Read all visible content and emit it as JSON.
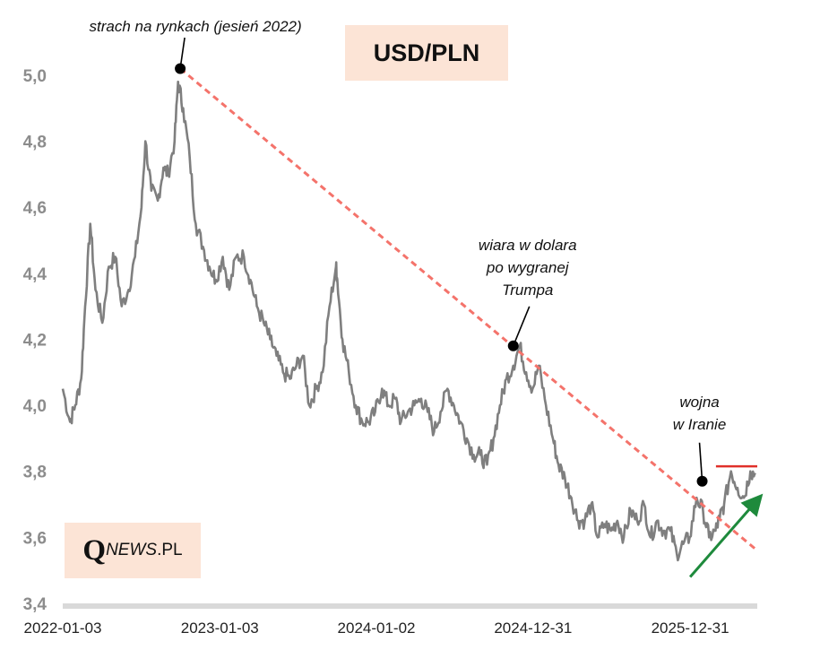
{
  "title": "USD/PLN",
  "logo": {
    "q": "Q",
    "news": "NEWS",
    "pl": ".PL"
  },
  "colors": {
    "series": "#7f7f7f",
    "resistance_trend": "#f4736b",
    "support_trend": "#1e8a3c",
    "horizontal_level": "#e0302a",
    "axis": "#d9d9d9",
    "box_fill": "#fce4d6"
  },
  "chart_data": {
    "type": "line",
    "title": "USD/PLN",
    "xlabel": "",
    "ylabel": "",
    "ylim": [
      3.4,
      5.1
    ],
    "xlim": [
      "2022-01-03",
      "2026-06-05"
    ],
    "grid": false,
    "y_ticks": [
      "3,4",
      "3,6",
      "3,8",
      "4,0",
      "4,2",
      "4,4",
      "4,6",
      "4,8",
      "5,0"
    ],
    "x_ticks": [
      "2022-01-03",
      "2023-01-03",
      "2024-01-02",
      "2024-12-31",
      "2025-12-31"
    ],
    "series": [
      {
        "x": [
          "2022-01-03",
          "2022-01-20",
          "2022-02-01",
          "2022-02-15",
          "2022-02-24",
          "2022-03-08",
          "2022-03-20",
          "2022-04-05",
          "2022-04-20",
          "2022-05-05",
          "2022-05-20",
          "2022-06-05",
          "2022-06-20",
          "2022-07-05",
          "2022-07-14",
          "2022-07-28",
          "2022-08-12",
          "2022-08-25",
          "2022-09-05",
          "2022-09-20",
          "2022-09-28",
          "2022-10-10",
          "2022-10-25",
          "2022-11-08",
          "2022-11-25",
          "2022-12-10",
          "2022-12-25",
          "2023-01-10",
          "2023-01-25",
          "2023-02-10",
          "2023-02-28",
          "2023-03-15",
          "2023-03-30",
          "2023-04-15",
          "2023-04-30",
          "2023-05-15",
          "2023-05-30",
          "2023-06-15",
          "2023-06-30",
          "2023-07-15",
          "2023-07-30",
          "2023-08-15",
          "2023-08-30",
          "2023-09-15",
          "2023-09-30",
          "2023-10-03",
          "2023-10-15",
          "2023-10-30",
          "2023-11-15",
          "2023-11-30",
          "2023-12-15",
          "2023-12-30",
          "2024-01-15",
          "2024-01-30",
          "2024-02-15",
          "2024-02-28",
          "2024-03-15",
          "2024-03-30",
          "2024-04-15",
          "2024-04-30",
          "2024-05-15",
          "2024-05-30",
          "2024-06-15",
          "2024-06-30",
          "2024-07-15",
          "2024-07-30",
          "2024-08-15",
          "2024-08-30",
          "2024-09-15",
          "2024-09-30",
          "2024-10-15",
          "2024-10-30",
          "2024-11-15",
          "2024-11-30",
          "2024-12-15",
          "2024-12-30",
          "2025-01-13",
          "2025-01-30",
          "2025-02-15",
          "2025-02-28",
          "2025-03-15",
          "2025-03-30",
          "2025-04-15",
          "2025-04-30",
          "2025-05-15",
          "2025-05-30",
          "2025-06-15",
          "2025-06-30",
          "2025-07-15",
          "2025-07-30",
          "2025-08-15",
          "2025-08-30",
          "2025-09-15",
          "2025-09-30",
          "2025-10-15",
          "2025-10-30",
          "2025-11-15",
          "2025-11-30",
          "2025-12-15",
          "2025-12-30",
          "2026-01-15",
          "2026-01-30",
          "2026-02-13",
          "2026-02-28",
          "2026-03-10",
          "2026-03-20",
          "2026-04-05",
          "2026-04-20",
          "2026-05-05",
          "2026-05-20",
          "2026-06-01"
        ],
        "y": [
          4.05,
          3.95,
          4.0,
          4.08,
          4.3,
          4.55,
          4.35,
          4.25,
          4.42,
          4.45,
          4.3,
          4.35,
          4.45,
          4.6,
          4.8,
          4.65,
          4.62,
          4.72,
          4.7,
          4.8,
          4.98,
          4.9,
          4.75,
          4.55,
          4.48,
          4.42,
          4.38,
          4.45,
          4.35,
          4.45,
          4.45,
          4.38,
          4.3,
          4.25,
          4.2,
          4.15,
          4.1,
          4.08,
          4.12,
          4.15,
          4.0,
          4.05,
          4.1,
          4.3,
          4.42,
          4.38,
          4.2,
          4.1,
          4.0,
          3.95,
          3.95,
          3.98,
          4.05,
          4.0,
          4.02,
          3.95,
          3.98,
          4.0,
          4.02,
          3.98,
          3.92,
          3.98,
          4.05,
          4.0,
          3.95,
          3.9,
          3.85,
          3.85,
          3.82,
          3.9,
          4.0,
          4.08,
          4.12,
          4.18,
          4.1,
          4.05,
          4.12,
          4.0,
          3.9,
          3.82,
          3.78,
          3.72,
          3.65,
          3.65,
          3.7,
          3.6,
          3.64,
          3.62,
          3.65,
          3.6,
          3.68,
          3.65,
          3.7,
          3.6,
          3.65,
          3.62,
          3.62,
          3.55,
          3.58,
          3.6,
          3.72,
          3.68,
          3.6,
          3.62,
          3.66,
          3.7,
          3.8,
          3.75,
          3.72,
          3.8,
          3.79
        ]
      }
    ],
    "trendlines": [
      {
        "name": "resistance",
        "style": "dashed",
        "from": [
          "2022-10-03",
          5.02
        ],
        "to": [
          "2026-06-05",
          3.56
        ]
      },
      {
        "name": "support",
        "style": "solid-arrow",
        "from": [
          "2025-12-31",
          3.48
        ],
        "to": [
          "2026-06-10",
          3.72
        ]
      },
      {
        "name": "level",
        "style": "solid",
        "from": [
          "2026-03-01",
          3.815
        ],
        "to": [
          "2026-06-05",
          3.815
        ]
      }
    ],
    "annotations": [
      {
        "text": "strach na rynkach (jesień 2022)",
        "x": "2022-10-03",
        "y": 5.02,
        "align": "above"
      },
      {
        "lines": [
          "wiara w dolara",
          "po wygranej",
          "Trumpa"
        ],
        "x": "2024-11-15",
        "y": 4.18,
        "align": "above-right"
      },
      {
        "lines": [
          "wojna",
          "w Iranie"
        ],
        "x": "2026-01-28",
        "y": 3.77,
        "align": "above"
      }
    ]
  }
}
